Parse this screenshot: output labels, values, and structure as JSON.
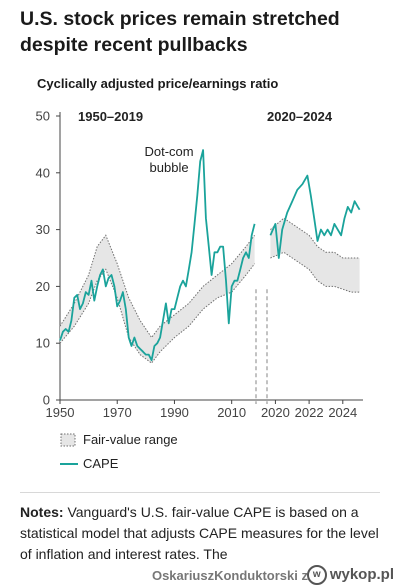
{
  "title": "U.S. stock prices remain stretched despite recent pullbacks",
  "subtitle": "Cyclically adjusted price/earnings ratio",
  "legend": {
    "fair_value": "Fair-value range",
    "cape": "CAPE"
  },
  "notes": {
    "label": "Notes:",
    "text": " Vanguard's U.S. fair-value CAPE is based on a statistical model that adjusts CAPE measures for the level of inflation and interest rates. The"
  },
  "watermark": {
    "user": "OskariuszKonduktorski z",
    "site": "wykop.pl"
  },
  "colors": {
    "cape": "#1aa39b",
    "band_fill": "#e6e6e6",
    "band_edge": "#6f6f6f",
    "text": "#222222"
  },
  "chart_data": {
    "type": "area",
    "ylim": [
      0,
      50
    ],
    "yticks": [
      0,
      10,
      20,
      30,
      40,
      50
    ],
    "panels": [
      {
        "label": "1950–2019",
        "xlim": [
          1950,
          2018.5
        ],
        "xticks": [
          1950,
          1970,
          1990,
          2010
        ],
        "annotation": [
          "Dot-com",
          "bubble"
        ],
        "annotation_at": [
          2000,
          44
        ],
        "cape": {
          "name": "CAPE",
          "x": [
            1950,
            1951,
            1952,
            1953,
            1954,
            1955,
            1956,
            1957,
            1958,
            1959,
            1960,
            1961,
            1962,
            1963,
            1964,
            1965,
            1966,
            1967,
            1968,
            1969,
            1970,
            1971,
            1972,
            1973,
            1974,
            1975,
            1976,
            1977,
            1978,
            1979,
            1980,
            1981,
            1982,
            1983,
            1984,
            1985,
            1986,
            1987,
            1988,
            1989,
            1990,
            1991,
            1992,
            1993,
            1994,
            1995,
            1996,
            1997,
            1998,
            1999,
            2000,
            2001,
            2002,
            2003,
            2004,
            2005,
            2006,
            2007,
            2008,
            2009,
            2010,
            2011,
            2012,
            2013,
            2014,
            2015,
            2016,
            2017,
            2018
          ],
          "y": [
            10.5,
            12,
            12.5,
            12,
            14,
            18,
            18.5,
            16,
            17,
            19,
            18.5,
            21,
            17.5,
            20,
            22,
            23,
            20,
            21.5,
            22,
            20,
            16.5,
            17.5,
            19,
            16,
            11,
            9.5,
            11,
            9.5,
            9,
            8.5,
            8,
            8,
            7,
            9.5,
            10,
            11,
            14,
            17,
            13.5,
            16,
            16,
            18,
            20,
            21,
            20,
            23,
            26,
            31,
            36,
            42,
            44,
            32,
            27,
            22,
            26,
            26,
            27,
            27,
            21,
            13.5,
            20,
            21,
            21,
            23,
            25,
            26,
            25,
            29,
            31
          ]
        },
        "fair_value_upper": {
          "x": [
            1950,
            1955,
            1960,
            1963,
            1966,
            1970,
            1974,
            1978,
            1982,
            1985,
            1990,
            1995,
            2000,
            2005,
            2010,
            2015,
            2018
          ],
          "y": [
            13,
            17,
            22,
            27,
            29,
            24,
            18,
            14,
            11,
            13,
            15,
            17,
            20,
            22,
            24,
            27,
            29
          ]
        },
        "fair_value_lower": {
          "x": [
            1950,
            1955,
            1960,
            1963,
            1966,
            1970,
            1974,
            1978,
            1982,
            1985,
            1990,
            1995,
            2000,
            2005,
            2010,
            2015,
            2018
          ],
          "y": [
            10,
            13,
            17,
            21,
            23,
            18,
            11,
            8,
            6.5,
            8.5,
            11,
            13,
            16,
            18,
            19,
            22,
            24
          ]
        }
      },
      {
        "label": "2020–2024",
        "xlim": [
          2019.5,
          2025.2
        ],
        "xticks": [
          2020,
          2022,
          2024
        ],
        "cape": {
          "name": "CAPE",
          "x": [
            2019.7,
            2020.0,
            2020.2,
            2020.4,
            2020.7,
            2021.0,
            2021.3,
            2021.6,
            2021.9,
            2022.1,
            2022.3,
            2022.5,
            2022.7,
            2022.9,
            2023.1,
            2023.3,
            2023.5,
            2023.7,
            2023.9,
            2024.1,
            2024.3,
            2024.5,
            2024.7,
            2024.9,
            2025.0
          ],
          "y": [
            29,
            31,
            25,
            30,
            33,
            35,
            37,
            38,
            39.5,
            36,
            32,
            28,
            30,
            29,
            30,
            29,
            31,
            30,
            29,
            32,
            34,
            33,
            35,
            34,
            33.5
          ]
        },
        "fair_value_upper": {
          "x": [
            2019.7,
            2020.5,
            2021.0,
            2021.5,
            2022.0,
            2022.5,
            2023.0,
            2023.5,
            2024.0,
            2024.5,
            2025.0
          ],
          "y": [
            30,
            32,
            31,
            30,
            29,
            27,
            26,
            26,
            25,
            25,
            25
          ]
        },
        "fair_value_lower": {
          "x": [
            2019.7,
            2020.5,
            2021.0,
            2021.5,
            2022.0,
            2022.5,
            2023.0,
            2023.5,
            2024.0,
            2024.5,
            2025.0
          ],
          "y": [
            25,
            26,
            25,
            24,
            23,
            21,
            20,
            20,
            19.5,
            19,
            19
          ]
        }
      }
    ]
  }
}
